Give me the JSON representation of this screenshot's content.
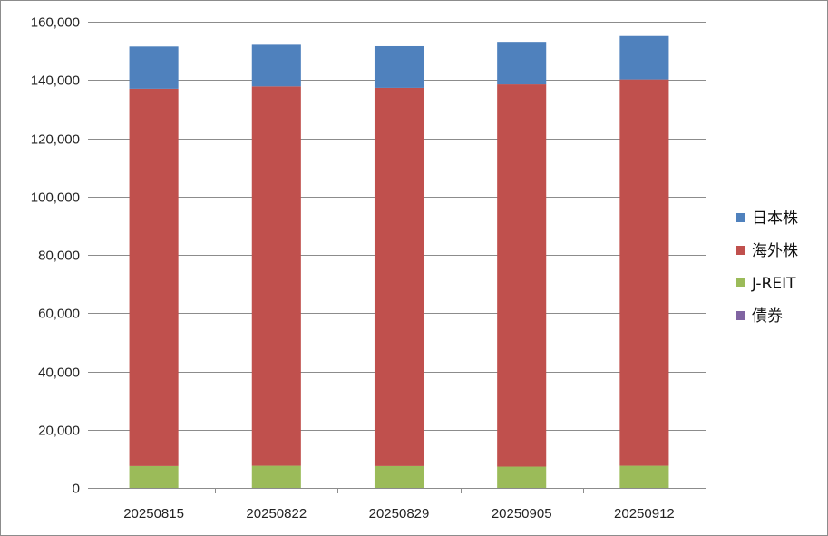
{
  "chart_data": {
    "type": "bar",
    "stacked": true,
    "categories": [
      "20250815",
      "20250822",
      "20250829",
      "20250905",
      "20250912"
    ],
    "series": [
      {
        "name": "債券",
        "color": "#8064A2",
        "values": [
          0,
          0,
          0,
          0,
          0
        ]
      },
      {
        "name": "J-REIT",
        "color": "#9BBB59",
        "values": [
          7500,
          7600,
          7500,
          7300,
          7600
        ]
      },
      {
        "name": "海外株",
        "color": "#C0504D",
        "values": [
          129500,
          130200,
          129800,
          131200,
          132600
        ]
      },
      {
        "name": "日本株",
        "color": "#4F81BD",
        "values": [
          14500,
          14300,
          14300,
          14600,
          14900
        ]
      }
    ],
    "legend_order": [
      "日本株",
      "海外株",
      "J-REIT",
      "債券"
    ],
    "ylim": [
      0,
      160000
    ],
    "yticks": [
      0,
      20000,
      40000,
      60000,
      80000,
      100000,
      120000,
      140000,
      160000
    ],
    "ytick_labels": [
      "0",
      "20,000",
      "40,000",
      "60,000",
      "80,000",
      "100,000",
      "120,000",
      "140,000",
      "160,000"
    ],
    "grid": true,
    "legend_position": "right",
    "title": "",
    "xlabel": "",
    "ylabel": ""
  }
}
